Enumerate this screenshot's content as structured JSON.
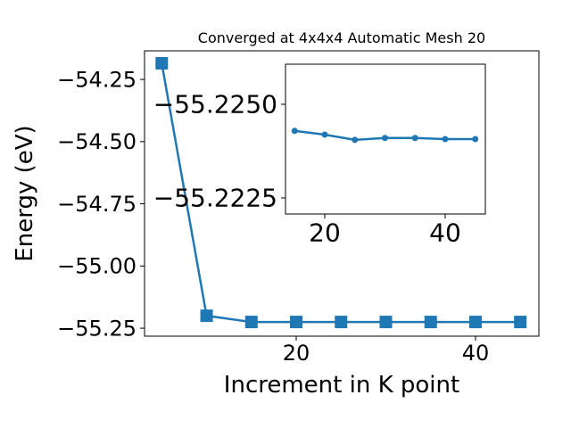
{
  "chart_data": [
    {
      "type": "line",
      "title": "Converged at 4x4x4 Automatic Mesh 20",
      "x_label": "Increment in K point",
      "y_label": "Energy (eV)",
      "x": [
        5,
        10,
        15,
        20,
        25,
        30,
        35,
        40,
        45
      ],
      "series": [
        {
          "color": "#1f77b4",
          "marker": "square",
          "values": [
            -54.185,
            -55.2,
            -55.225,
            -55.225,
            -55.225,
            -55.225,
            -55.225,
            -55.225,
            -55.225
          ]
        }
      ],
      "xlim": [
        3.08,
        47.07
      ],
      "ylim": [
        -55.282,
        -54.135
      ],
      "xticks": [
        20,
        40
      ],
      "yticks": [
        {
          "value": -55.25,
          "label": "−55.25"
        },
        {
          "value": -55.0,
          "label": "−55.00"
        },
        {
          "value": -54.75,
          "label": "−54.75"
        },
        {
          "value": -54.5,
          "label": "−54.50"
        },
        {
          "value": -54.25,
          "label": "−54.25"
        }
      ]
    },
    {
      "type": "line",
      "x": [
        15,
        20,
        25,
        30,
        35,
        40,
        45
      ],
      "series": [
        {
          "color": "#1f77b4",
          "marker": "circle",
          "values": [
            -55.22429,
            -55.22419,
            -55.22405,
            -55.2241,
            -55.2241,
            -55.22407,
            -55.22407
          ]
        }
      ],
      "xlim": [
        13.48,
        46.67
      ],
      "ylim": [
        -55.22207,
        -55.22607
      ],
      "xticks": [
        20,
        40
      ],
      "yticks": [
        {
          "value": -55.2225,
          "label": "−55.2225"
        },
        {
          "value": -55.225,
          "label": "−55.2250"
        }
      ]
    }
  ]
}
